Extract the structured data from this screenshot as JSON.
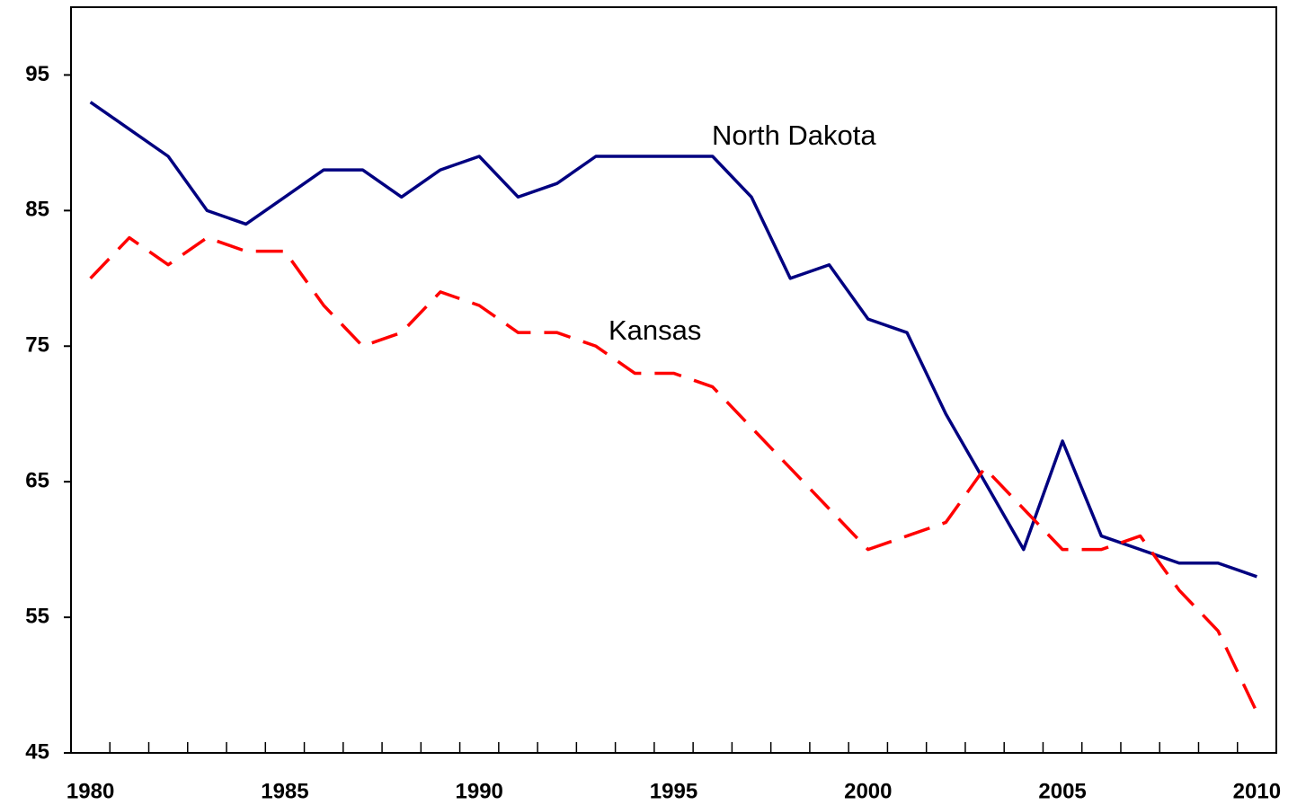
{
  "chart_data": {
    "type": "line",
    "x": [
      1980,
      1981,
      1982,
      1983,
      1984,
      1985,
      1986,
      1987,
      1988,
      1989,
      1990,
      1991,
      1992,
      1993,
      1994,
      1995,
      1996,
      1997,
      1998,
      1999,
      2000,
      2001,
      2002,
      2003,
      2004,
      2005,
      2006,
      2007,
      2008,
      2009,
      2010
    ],
    "series": [
      {
        "name": "North Dakota",
        "color": "#000080",
        "dash": false,
        "values": [
          93,
          91,
          89,
          85,
          84,
          86,
          88,
          88,
          86,
          88,
          89,
          86,
          87,
          89,
          89,
          89,
          89,
          86,
          80,
          81,
          77,
          76,
          70,
          65,
          60,
          68,
          61,
          60,
          59,
          59,
          58
        ]
      },
      {
        "name": "Kansas",
        "color": "#ff0000",
        "dash": true,
        "values": [
          80,
          83,
          81,
          83,
          82,
          82,
          78,
          75,
          76,
          79,
          78,
          76,
          76,
          75,
          73,
          73,
          72,
          69,
          66,
          63,
          60,
          61,
          62,
          66,
          63,
          60,
          60,
          61,
          57,
          54,
          48
        ]
      }
    ],
    "xlim": [
      1979.5,
      2010.5
    ],
    "xticks": [
      1980,
      1985,
      1990,
      1995,
      2000,
      2005,
      2010
    ],
    "ylim": [
      45,
      100
    ],
    "yticks": [
      45,
      55,
      65,
      75,
      85,
      95
    ]
  }
}
